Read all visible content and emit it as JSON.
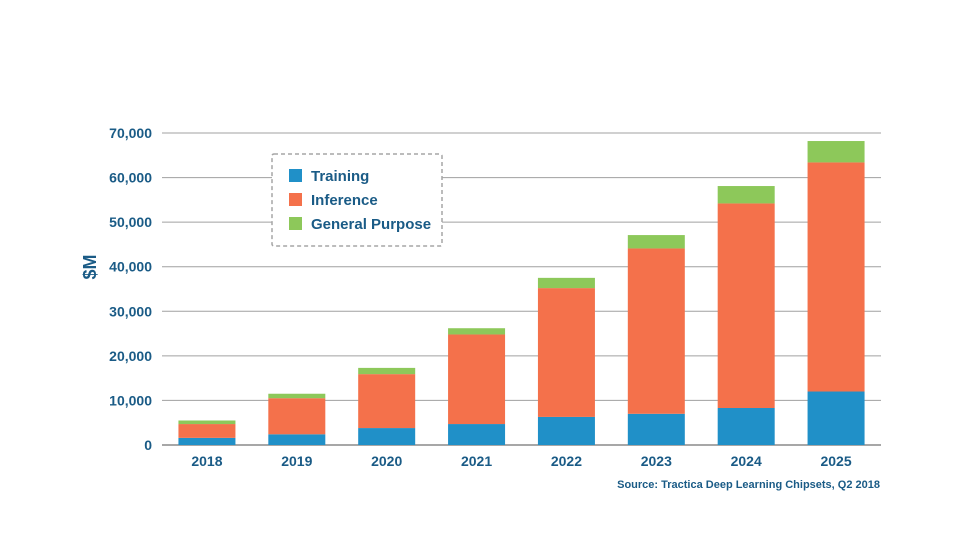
{
  "chart_data": {
    "type": "bar",
    "stacked": true,
    "categories": [
      "2018",
      "2019",
      "2020",
      "2021",
      "2022",
      "2023",
      "2024",
      "2025"
    ],
    "series": [
      {
        "name": "Training",
        "color": "#2090c8",
        "values": [
          1600,
          2400,
          3800,
          4700,
          6300,
          7000,
          8300,
          12000
        ]
      },
      {
        "name": "Inference",
        "color": "#f4714b",
        "values": [
          3100,
          8100,
          12100,
          20100,
          28900,
          37100,
          45900,
          51400
        ]
      },
      {
        "name": "General Purpose",
        "color": "#8dc85a",
        "values": [
          800,
          1000,
          1400,
          1400,
          2300,
          3000,
          3900,
          4800
        ]
      }
    ],
    "ylabel": "$M",
    "ylim": [
      0,
      70000
    ],
    "yticks": [
      0,
      10000,
      20000,
      30000,
      40000,
      50000,
      60000,
      70000
    ],
    "ytick_labels": [
      "0",
      "10,000",
      "20,000",
      "30,000",
      "40,000",
      "50,000",
      "60,000",
      "70,000"
    ],
    "grid": true,
    "legend_position": "top-left",
    "source": "Source: Tractica Deep Learning Chipsets, Q2 2018"
  }
}
